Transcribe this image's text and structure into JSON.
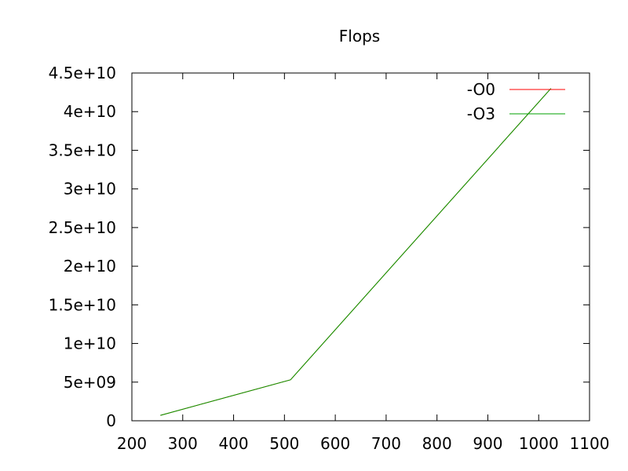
{
  "chart_data": {
    "type": "line",
    "title": "Flops",
    "xlabel": "",
    "ylabel": "",
    "xlim": [
      200,
      1100
    ],
    "ylim": [
      0,
      45000000000
    ],
    "x_ticks": [
      200,
      300,
      400,
      500,
      600,
      700,
      800,
      900,
      1000,
      1100
    ],
    "x_tick_labels": [
      "200",
      "300",
      "400",
      "500",
      "600",
      "700",
      "800",
      "900",
      "1000",
      "1100"
    ],
    "y_ticks": [
      0,
      5000000000,
      10000000000,
      15000000000,
      20000000000,
      25000000000,
      30000000000,
      35000000000,
      40000000000,
      45000000000
    ],
    "y_tick_labels": [
      "0",
      "5e+09",
      "1e+10",
      "1.5e+10",
      "2e+10",
      "2.5e+10",
      "3e+10",
      "3.5e+10",
      "4e+10",
      "4.5e+10"
    ],
    "grid": false,
    "legend_position": "top-right",
    "series": [
      {
        "name": "-O0",
        "color": "#ff0000",
        "x": [
          256,
          512,
          1024
        ],
        "y": [
          700000000,
          5300000000,
          43000000000
        ]
      },
      {
        "name": "-O3",
        "color": "#00a000",
        "x": [
          256,
          512,
          1024
        ],
        "y": [
          700000000,
          5300000000,
          43000000000
        ]
      }
    ]
  }
}
